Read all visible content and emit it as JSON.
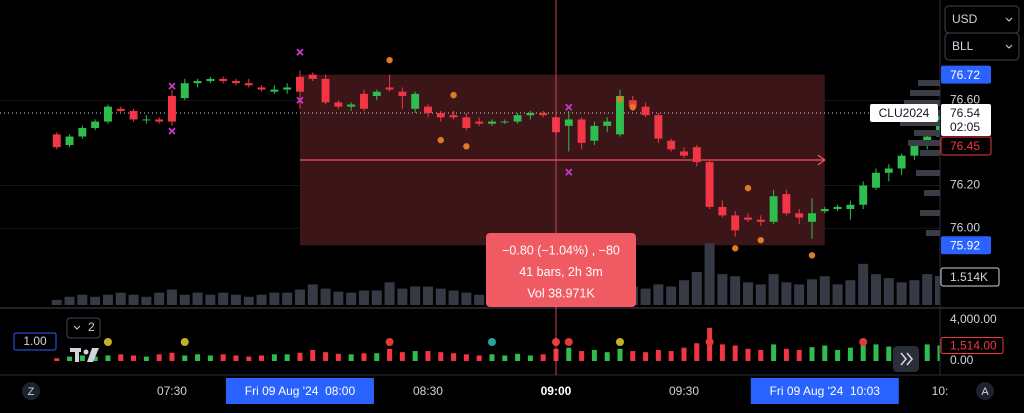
{
  "chart_data": {
    "type": "candlestick",
    "symbol": "CLU2024",
    "currency": "USD",
    "unit": "BLL",
    "countdown": "02:05",
    "ref_price": 76.45,
    "scale_label": "1.00",
    "pane_count": "2",
    "z_button": "Z",
    "a_button": "A",
    "up_color": "#2ebd4e",
    "down_color": "#f23645",
    "x": [
      423,
      426,
      429,
      432,
      435,
      438,
      441,
      444,
      447,
      450,
      453,
      456,
      459,
      462,
      465,
      468,
      471,
      474,
      477,
      480,
      483,
      486,
      489,
      492,
      495,
      498,
      501,
      504,
      507,
      510,
      513,
      516,
      519,
      522,
      525,
      528,
      531,
      534,
      537,
      540,
      543,
      546,
      549,
      552,
      555,
      558,
      561,
      564,
      567,
      570,
      573,
      576,
      579,
      582,
      585,
      588,
      591,
      594,
      597,
      600,
      603,
      606,
      609,
      612,
      615,
      618,
      621,
      624,
      627,
      630
    ],
    "open": [
      76.44,
      76.39,
      76.43,
      76.47,
      76.5,
      76.56,
      76.55,
      76.51,
      76.51,
      76.62,
      76.61,
      76.68,
      76.69,
      76.7,
      76.69,
      76.68,
      76.66,
      76.64,
      76.65,
      76.71,
      76.72,
      76.7,
      76.59,
      76.57,
      76.63,
      76.62,
      76.66,
      76.64,
      76.56,
      76.57,
      76.54,
      76.53,
      76.52,
      76.5,
      76.49,
      76.5,
      76.5,
      76.53,
      76.54,
      76.52,
      76.48,
      76.51,
      76.41,
      76.48,
      76.44,
      76.6,
      76.57,
      76.53,
      76.41,
      76.36,
      76.38,
      76.31,
      76.1,
      76.06,
      76.05,
      76.04,
      76.03,
      76.16,
      76.07,
      76.03,
      76.08,
      76.09,
      76.09,
      76.11,
      76.19,
      76.26,
      76.28,
      76.34,
      76.39,
      76.43
    ],
    "high": [
      76.45,
      76.44,
      76.48,
      76.51,
      76.58,
      76.57,
      76.56,
      76.53,
      76.52,
      76.65,
      76.7,
      76.7,
      76.71,
      76.71,
      76.7,
      76.7,
      76.67,
      76.67,
      76.68,
      76.74,
      76.73,
      76.72,
      76.6,
      76.59,
      76.65,
      76.65,
      76.72,
      76.66,
      76.64,
      76.58,
      76.55,
      76.55,
      76.54,
      76.52,
      76.51,
      76.51,
      76.54,
      76.55,
      76.55,
      76.53,
      76.55,
      76.52,
      76.5,
      76.52,
      76.65,
      76.62,
      76.59,
      76.54,
      76.42,
      76.38,
      76.39,
      76.32,
      76.13,
      76.08,
      76.07,
      76.06,
      76.18,
      76.18,
      76.09,
      76.14,
      76.1,
      76.11,
      76.13,
      76.22,
      76.28,
      76.3,
      76.35,
      76.41,
      76.46,
      76.56
    ],
    "low": [
      76.37,
      76.38,
      76.42,
      76.46,
      76.49,
      76.54,
      76.5,
      76.49,
      76.49,
      76.48,
      76.6,
      76.66,
      76.68,
      76.68,
      76.67,
      76.66,
      76.64,
      76.63,
      76.63,
      76.56,
      76.69,
      76.58,
      76.56,
      76.55,
      76.55,
      76.6,
      76.64,
      76.56,
      76.54,
      76.52,
      76.5,
      76.51,
      76.46,
      76.48,
      76.48,
      76.49,
      76.49,
      76.51,
      76.52,
      76.43,
      76.36,
      76.37,
      76.39,
      76.45,
      76.43,
      76.55,
      76.52,
      76.4,
      76.36,
      76.33,
      76.29,
      76.09,
      76.05,
      75.96,
      76.03,
      76.01,
      76.02,
      76.06,
      76.02,
      75.95,
      76.07,
      76.08,
      76.04,
      76.09,
      76.18,
      76.22,
      76.25,
      76.32,
      76.37,
      76.42
    ],
    "close": [
      76.38,
      76.43,
      76.47,
      76.5,
      76.57,
      76.55,
      76.51,
      76.51,
      76.5,
      76.5,
      76.68,
      76.69,
      76.7,
      76.69,
      76.68,
      76.67,
      76.65,
      76.65,
      76.66,
      76.64,
      76.7,
      76.59,
      76.57,
      76.58,
      76.56,
      76.64,
      76.65,
      76.62,
      76.63,
      76.54,
      76.52,
      76.52,
      76.47,
      76.49,
      76.5,
      76.5,
      76.53,
      76.54,
      76.53,
      76.45,
      76.51,
      76.4,
      76.48,
      76.5,
      76.62,
      76.57,
      76.53,
      76.42,
      76.37,
      76.34,
      76.31,
      76.1,
      76.06,
      75.99,
      76.04,
      76.03,
      76.15,
      76.07,
      76.05,
      76.07,
      76.09,
      76.1,
      76.11,
      76.2,
      76.26,
      76.28,
      76.34,
      76.39,
      76.43,
      76.54
    ],
    "volume": [
      270,
      430,
      540,
      430,
      540,
      650,
      540,
      430,
      650,
      810,
      540,
      650,
      540,
      650,
      540,
      430,
      540,
      650,
      650,
      810,
      1080,
      860,
      700,
      650,
      760,
      760,
      1190,
      860,
      970,
      970,
      860,
      760,
      650,
      540,
      650,
      540,
      700,
      540,
      650,
      1190,
      1300,
      970,
      1080,
      860,
      1190,
      970,
      860,
      1080,
      970,
      1300,
      1730,
      3240,
      1620,
      1510,
      1190,
      1080,
      1620,
      1190,
      1080,
      1350,
      1510,
      1080,
      1300,
      2160,
      1620,
      1410,
      1190,
      1300,
      1620,
      1514
    ],
    "volume_lim": [
      0,
      16000
    ],
    "volume_label": "1.514K",
    "xlim": [
      409.7,
      630
    ],
    "ylim": [
      75.64,
      77.07
    ],
    "yticks": [
      {
        "value": 76.6,
        "label": "76.60"
      },
      {
        "value": 76.2,
        "label": "76.20"
      },
      {
        "value": 76.0,
        "label": "76.00"
      }
    ],
    "xticks": [
      {
        "value": 450,
        "label": "07:30"
      },
      {
        "value": 510,
        "label": "08:30"
      },
      {
        "value": 540,
        "label": "09:00"
      },
      {
        "value": 570,
        "label": "09:30"
      },
      {
        "value": 630,
        "label": "10:"
      }
    ],
    "grid": true,
    "crosshair_x": 540,
    "markers": [
      {
        "shape": "x",
        "color": "#c936c9",
        "x": [
          480,
          450,
          450,
          480,
          543,
          543
        ],
        "y": [
          76.825,
          76.666,
          76.455,
          76.6,
          76.567,
          76.263
        ]
      },
      {
        "shape": "dot",
        "color": "#e07b24",
        "x": [
          501,
          516,
          513,
          519,
          555,
          558,
          585,
          582,
          588,
          600
        ],
        "y": [
          76.788,
          76.624,
          76.413,
          76.384,
          76.605,
          76.567,
          76.188,
          75.906,
          75.944,
          75.873
        ]
      }
    ],
    "measure": {
      "x0": 480,
      "x1": 603,
      "high": 76.72,
      "low": 75.92,
      "level": 76.32,
      "start_label": "Fri 09 Aug '24  08:00",
      "end_label": "Fri 09 Aug '24  10:03",
      "lines": [
        "−0.80 (−1.04%) , −80",
        "41 bars, 2h 3m",
        "Vol 38.971K"
      ]
    },
    "volume_panel": {
      "ylim": [
        0,
        4000
      ],
      "yticks": [
        {
          "value": 4000,
          "label": "4,000.00"
        },
        {
          "value": 0,
          "label": "0.00"
        }
      ],
      "last_label": "1,514.00"
    },
    "signals": {
      "x": [
        435,
        453,
        501,
        525,
        540,
        543,
        555,
        576,
        612
      ],
      "colors": [
        "#c2b22a",
        "#c2b22a",
        "#e53935",
        "#26a69a",
        "#e53935",
        "#e53935",
        "#c2b22a",
        "#e53935",
        "#e53935"
      ]
    }
  }
}
